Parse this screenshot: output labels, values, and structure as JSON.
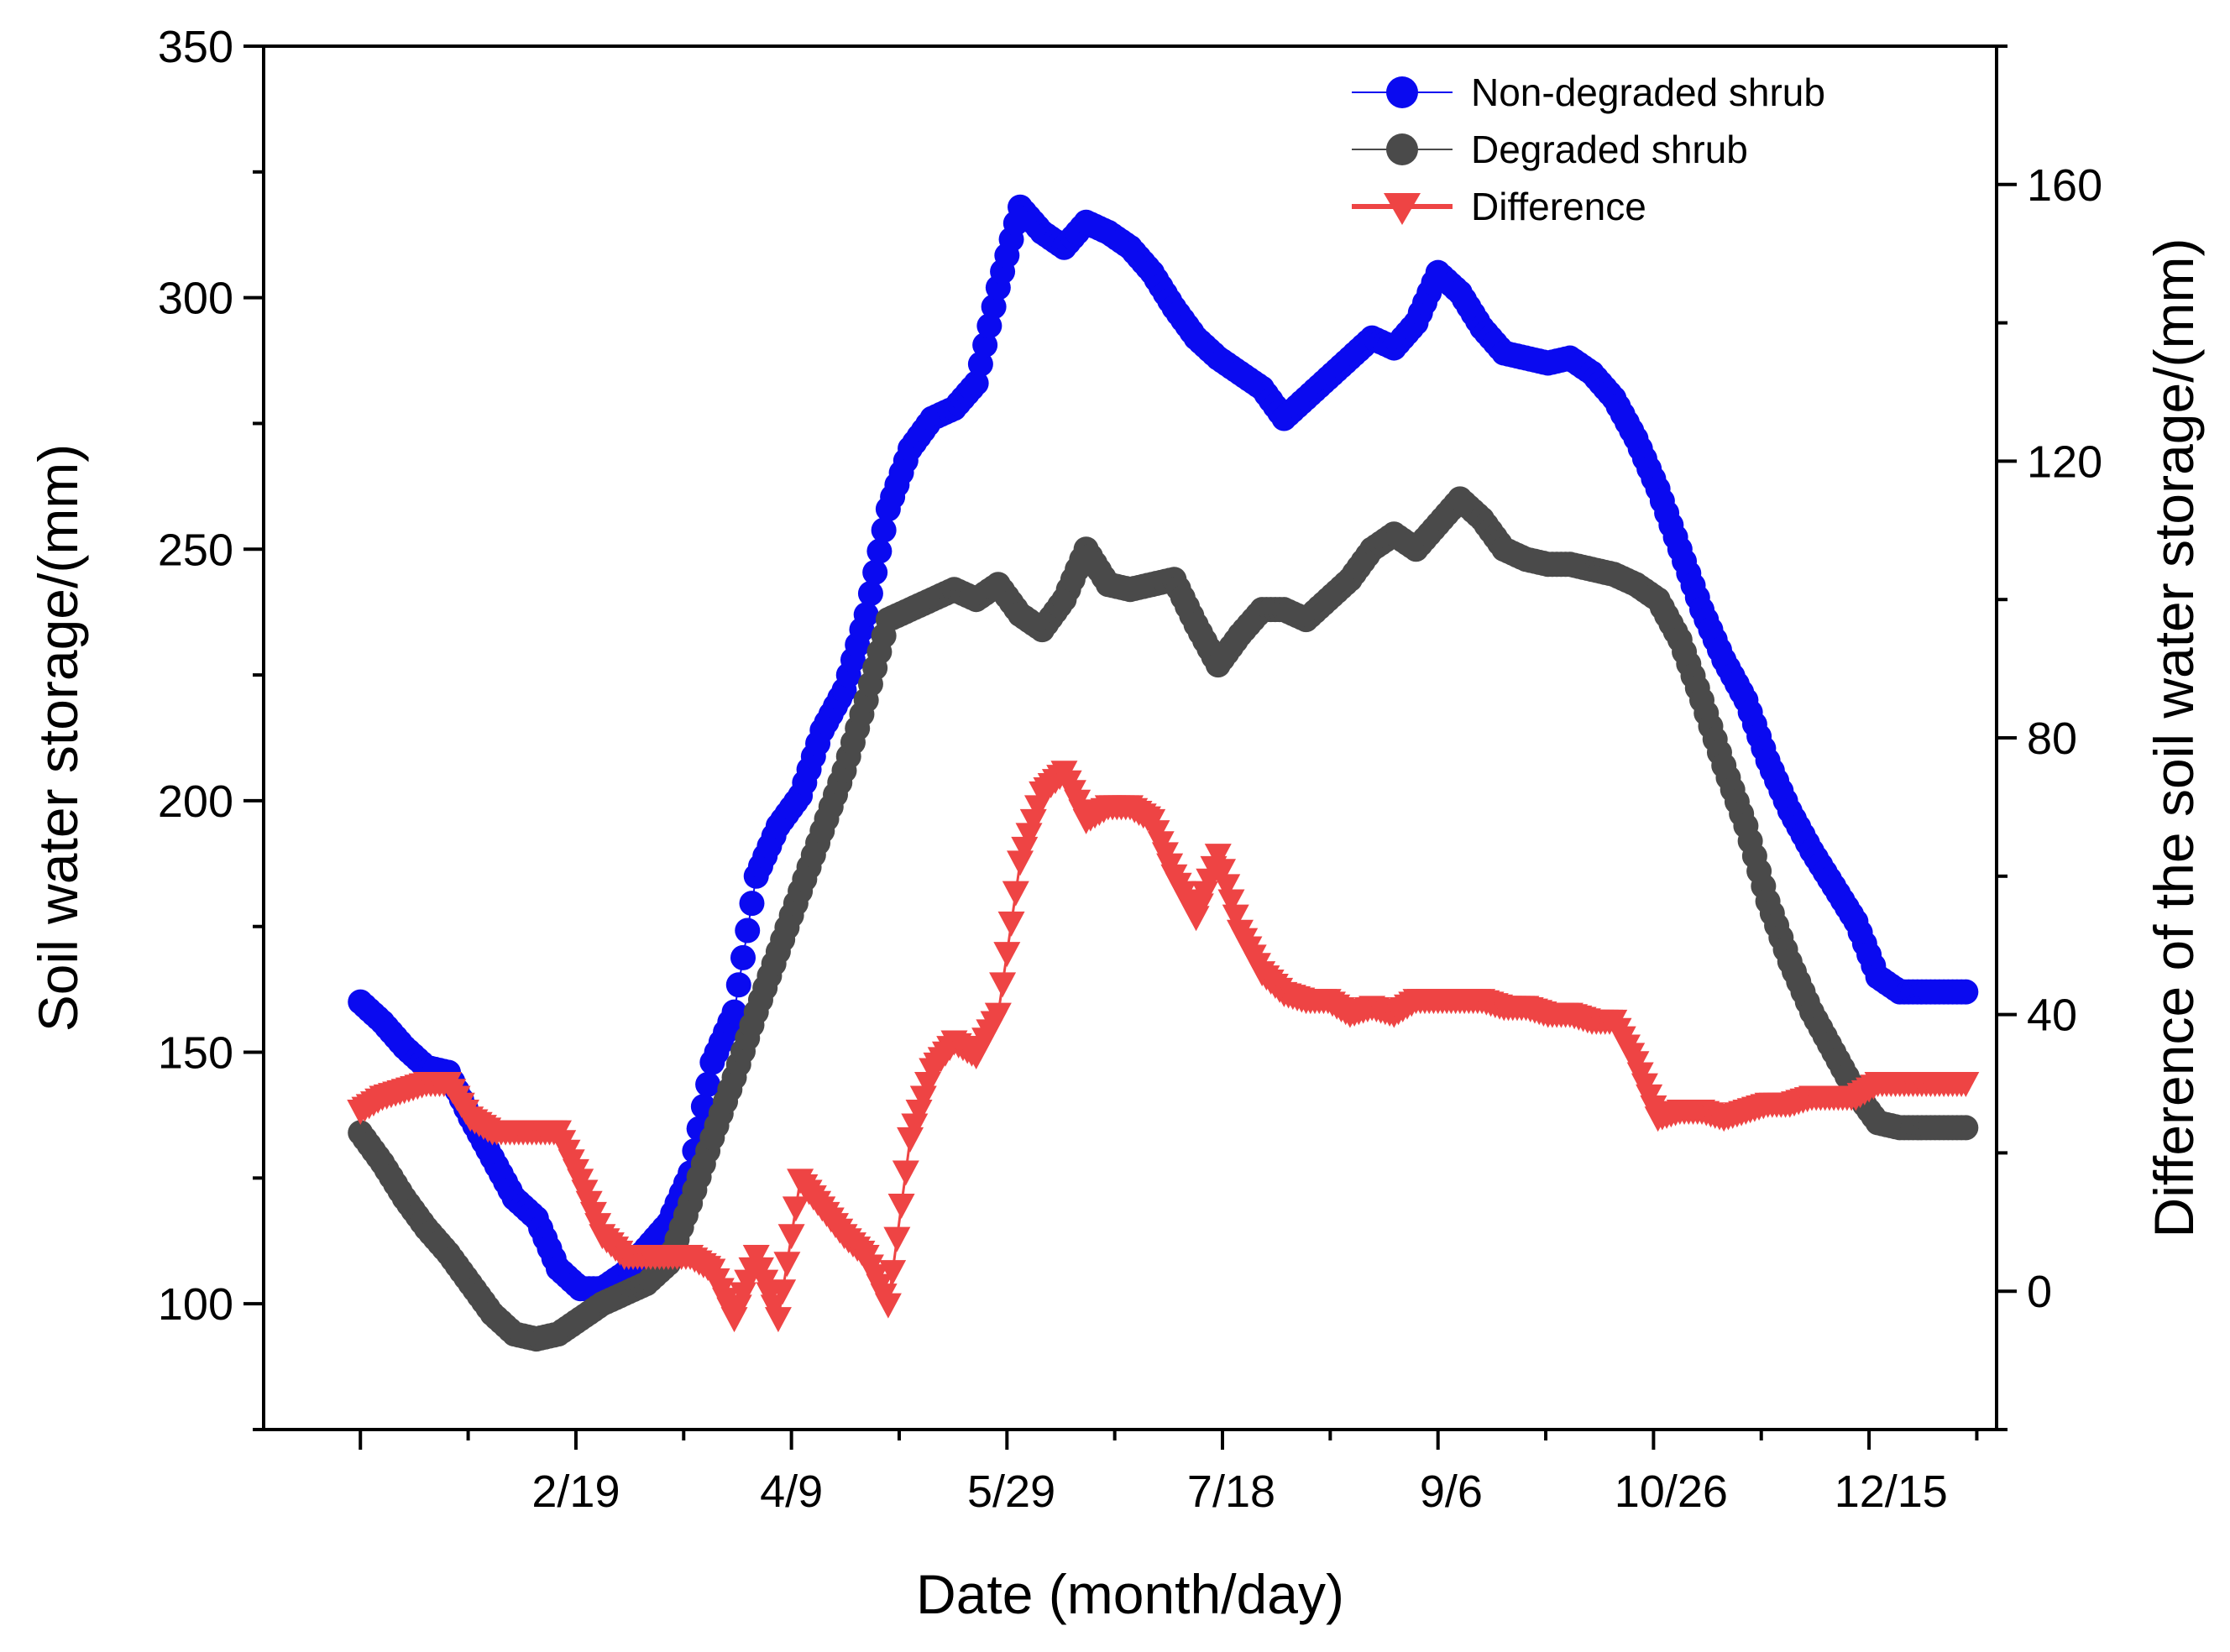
{
  "chart_data": {
    "type": "scatter",
    "xlabel": "Date (month/day)",
    "ylabel": "Soil water storage/(mm)",
    "y2label": "Difference of the soil water storage/(mm)",
    "xlim": [
      -22,
      372
    ],
    "ylim": [
      75,
      350
    ],
    "y2lim": [
      -20,
      180
    ],
    "x_ticks": [
      {
        "day": 49,
        "label": "2/19"
      },
      {
        "day": 98,
        "label": "4/9"
      },
      {
        "day": 148,
        "label": "5/29"
      },
      {
        "day": 198,
        "label": "7/18"
      },
      {
        "day": 248,
        "label": "9/6"
      },
      {
        "day": 298,
        "label": "10/26"
      },
      {
        "day": 348,
        "label": "12/15"
      }
    ],
    "y_ticks": [
      100,
      150,
      200,
      250,
      300,
      350
    ],
    "y2_ticks": [
      0,
      40,
      80,
      120,
      160
    ],
    "legend_position": "top-right",
    "colors": {
      "Non-degraded shrub": "#0a0af0",
      "Degraded shrub": "#4a4a4a",
      "Difference": "#ee4444"
    },
    "series": [
      {
        "name": "Non-degraded shrub",
        "axis": "left",
        "marker": "circle",
        "x": [
          0,
          5,
          10,
          15,
          20,
          25,
          30,
          35,
          40,
          45,
          50,
          55,
          60,
          65,
          70,
          75,
          80,
          85,
          90,
          95,
          100,
          105,
          110,
          115,
          120,
          125,
          130,
          135,
          140,
          145,
          150,
          155,
          160,
          165,
          170,
          175,
          180,
          185,
          190,
          195,
          200,
          205,
          210,
          215,
          220,
          225,
          230,
          235,
          240,
          245,
          250,
          255,
          260,
          265,
          270,
          275,
          280,
          285,
          290,
          295,
          300,
          305,
          310,
          315,
          320,
          325,
          330,
          335,
          340,
          345,
          350,
          355,
          360,
          365
        ],
        "values": [
          160,
          156,
          151,
          147,
          146,
          137,
          129,
          121,
          117,
          107,
          103,
          103,
          106,
          111,
          116,
          126,
          148,
          158,
          185,
          195,
          201,
          214,
          222,
          237,
          258,
          270,
          276,
          278,
          283,
          302,
          318,
          313,
          310,
          315,
          313,
          310,
          305,
          298,
          292,
          288,
          285,
          282,
          276,
          280,
          284,
          288,
          292,
          290,
          295,
          305,
          301,
          294,
          289,
          288,
          287,
          288,
          285,
          280,
          272,
          262,
          250,
          238,
          228,
          220,
          208,
          198,
          190,
          183,
          176,
          165,
          162,
          162,
          162,
          162
        ]
      },
      {
        "name": "Degraded shrub",
        "axis": "left",
        "marker": "circle",
        "x": [
          0,
          5,
          10,
          15,
          20,
          25,
          30,
          35,
          40,
          45,
          50,
          55,
          60,
          65,
          70,
          75,
          80,
          85,
          90,
          95,
          100,
          105,
          110,
          115,
          120,
          125,
          130,
          135,
          140,
          145,
          150,
          155,
          160,
          165,
          170,
          175,
          180,
          185,
          190,
          195,
          200,
          205,
          210,
          215,
          220,
          225,
          230,
          235,
          240,
          245,
          250,
          255,
          260,
          265,
          270,
          275,
          280,
          285,
          290,
          295,
          300,
          305,
          310,
          315,
          320,
          325,
          330,
          335,
          340,
          345,
          350,
          355,
          360,
          365
        ],
        "values": [
          134,
          128,
          121,
          115,
          110,
          104,
          98,
          94,
          93,
          94,
          97,
          100,
          102,
          104,
          108,
          120,
          133,
          145,
          158,
          170,
          182,
          194,
          206,
          220,
          236,
          238,
          240,
          242,
          240,
          243,
          237,
          234,
          240,
          250,
          243,
          242,
          243,
          244,
          235,
          227,
          233,
          238,
          238,
          236,
          240,
          244,
          250,
          253,
          250,
          255,
          260,
          256,
          250,
          248,
          247,
          247,
          246,
          245,
          243,
          240,
          232,
          220,
          207,
          195,
          180,
          168,
          158,
          150,
          142,
          136,
          135,
          135,
          135,
          135
        ]
      },
      {
        "name": "Difference",
        "axis": "right",
        "marker": "triangle-down",
        "x": [
          0,
          5,
          10,
          15,
          20,
          25,
          30,
          35,
          40,
          45,
          50,
          55,
          60,
          65,
          70,
          75,
          80,
          85,
          90,
          95,
          100,
          105,
          110,
          115,
          120,
          125,
          130,
          135,
          140,
          145,
          150,
          155,
          160,
          165,
          170,
          175,
          180,
          185,
          190,
          195,
          200,
          205,
          210,
          215,
          220,
          225,
          230,
          235,
          240,
          245,
          250,
          255,
          260,
          265,
          270,
          275,
          280,
          285,
          290,
          295,
          300,
          305,
          310,
          315,
          320,
          325,
          330,
          335,
          340,
          345,
          350,
          355,
          360,
          365
        ],
        "values": [
          26,
          28,
          29,
          30,
          30,
          25,
          23,
          23,
          23,
          23,
          16,
          8,
          5,
          5,
          5,
          5,
          3,
          -4,
          5,
          -4,
          16,
          12,
          8,
          5,
          -2,
          22,
          32,
          36,
          34,
          40,
          62,
          72,
          75,
          68,
          70,
          70,
          68,
          60,
          54,
          63,
          52,
          46,
          43,
          42,
          42,
          40,
          41,
          40,
          42,
          42,
          42,
          42,
          41,
          41,
          40,
          40,
          39,
          39,
          33,
          25,
          26,
          26,
          25,
          26,
          27,
          27,
          28,
          28,
          28,
          30,
          30,
          30,
          30,
          30
        ]
      }
    ]
  }
}
